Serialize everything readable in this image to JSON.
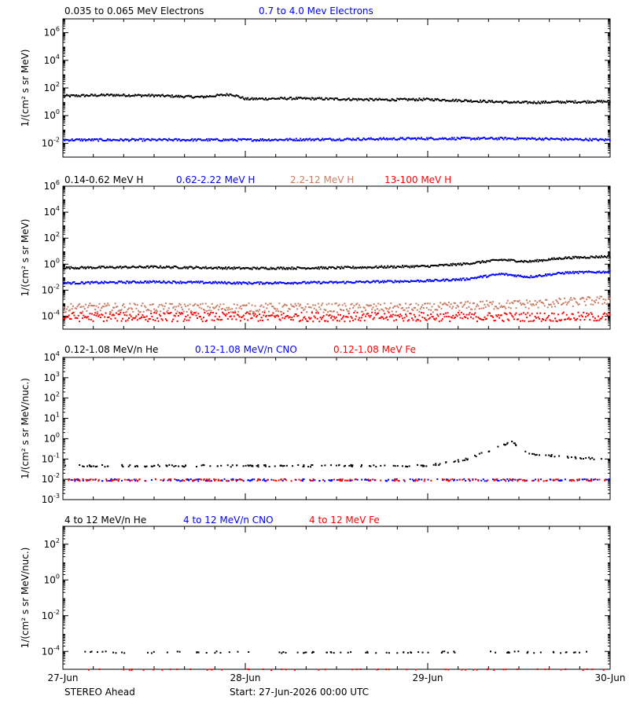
{
  "spacecraft": "STEREO Ahead",
  "start_text": "Start: 27-Jun-2026 00:00 UTC",
  "x_tick_labels": [
    "27-Jun",
    "28-Jun",
    "29-Jun",
    "30-Jun"
  ],
  "colors": {
    "black": "#000000",
    "blue": "#0000ff",
    "tan": "#c87d64",
    "red": "#ff0000"
  },
  "chart_data": [
    {
      "type": "scatter",
      "title": "",
      "ylabel": "1/(cm² s sr MeV)",
      "yscale": "log",
      "ylim": [
        0.001,
        10000000
      ],
      "y_tick_exponents": [
        -2,
        0,
        2,
        4,
        6
      ],
      "y_tick_labels": [
        "10-2",
        "100",
        "102",
        "104",
        "106"
      ],
      "xlim_days": [
        0,
        3
      ],
      "legend": [
        "0.035 to 0.065 MeV Electrons",
        "0.7 to 4.0 Mev Electrons"
      ],
      "series": [
        {
          "name": "0.035 to 0.065 MeV Electrons",
          "color": "#000000",
          "x": [
            0,
            0.25,
            0.5,
            0.75,
            0.92,
            1.0,
            1.25,
            1.5,
            1.75,
            2.0,
            2.25,
            2.5,
            2.75,
            3.0
          ],
          "y": [
            30,
            35,
            32,
            25,
            40,
            18,
            20,
            18,
            16,
            17,
            13,
            10,
            11,
            12
          ]
        },
        {
          "name": "0.7 to 4.0 Mev Electrons",
          "color": "#0000ff",
          "x": [
            0,
            0.5,
            1.0,
            1.5,
            2.0,
            2.5,
            3.0
          ],
          "y": [
            0.02,
            0.02,
            0.02,
            0.022,
            0.025,
            0.025,
            0.02
          ]
        }
      ]
    },
    {
      "type": "scatter",
      "title": "",
      "ylabel": "1/(cm² s sr MeV)",
      "yscale": "log",
      "ylim": [
        1e-05,
        1000000
      ],
      "y_tick_exponents": [
        -4,
        -2,
        0,
        2,
        4,
        6
      ],
      "y_tick_labels": [
        "10-4",
        "10-2",
        "100",
        "102",
        "104",
        "106"
      ],
      "xlim_days": [
        0,
        3
      ],
      "legend": [
        "0.14-0.62 MeV H",
        "0.62-2.22 MeV H",
        "2.2-12 MeV H",
        "13-100 MeV H"
      ],
      "series": [
        {
          "name": "0.14-0.62 MeV H",
          "color": "#000000",
          "x": [
            0,
            0.5,
            1.0,
            1.5,
            2.0,
            2.2,
            2.4,
            2.55,
            2.75,
            3.0
          ],
          "y": [
            0.6,
            0.7,
            0.55,
            0.6,
            0.8,
            1.2,
            2.5,
            1.8,
            3.5,
            4.5
          ]
        },
        {
          "name": "0.62-2.22 MeV H",
          "color": "#0000ff",
          "x": [
            0,
            0.5,
            1.0,
            1.5,
            2.0,
            2.2,
            2.4,
            2.55,
            2.75,
            3.0
          ],
          "y": [
            0.04,
            0.05,
            0.04,
            0.045,
            0.06,
            0.08,
            0.2,
            0.12,
            0.25,
            0.3
          ]
        },
        {
          "name": "2.2-12 MeV H",
          "color": "#c87d64",
          "x": [
            0,
            1.0,
            2.0,
            2.3,
            2.6,
            3.0
          ],
          "y": [
            0.0005,
            0.0005,
            0.0005,
            0.0008,
            0.001,
            0.002
          ]
        },
        {
          "name": "13-100 MeV H",
          "color": "#ff0000",
          "x": [
            0,
            1.0,
            2.0,
            3.0
          ],
          "y": [
            0.0001,
            0.0001,
            0.0001,
            0.0001
          ]
        }
      ]
    },
    {
      "type": "scatter",
      "title": "",
      "ylabel": "1/(cm² s sr MeV/nuc.)",
      "yscale": "log",
      "ylim": [
        0.001,
        10000
      ],
      "y_tick_exponents": [
        -3,
        -2,
        -1,
        0,
        1,
        2,
        3,
        4
      ],
      "y_tick_labels": [
        "10-3",
        "10-2",
        "10-1",
        "100",
        "101",
        "102",
        "103",
        "104"
      ],
      "xlim_days": [
        0,
        3
      ],
      "legend": [
        "0.12-1.08 MeV/n He",
        "0.12-1.08 MeV/n CNO",
        "0.12-1.08 MeV Fe"
      ],
      "series": [
        {
          "name": "0.12-1.08 MeV/n He",
          "color": "#000000",
          "x": [
            0,
            0.5,
            1.0,
            1.5,
            2.0,
            2.2,
            2.35,
            2.45,
            2.55,
            2.7,
            3.0
          ],
          "y": [
            0.05,
            0.05,
            0.05,
            0.05,
            0.05,
            0.1,
            0.3,
            0.8,
            0.2,
            0.15,
            0.1
          ]
        },
        {
          "name": "0.12-1.08 MeV/n CNO",
          "color": "#0000ff",
          "x": [
            0,
            1.0,
            2.0,
            3.0
          ],
          "y": [
            0.01,
            0.01,
            0.01,
            0.01
          ]
        },
        {
          "name": "0.12-1.08 MeV Fe",
          "color": "#ff0000",
          "x": [
            0,
            1.0,
            2.0,
            3.0
          ],
          "y": [
            0.01,
            0.01,
            0.01,
            0.01
          ]
        }
      ]
    },
    {
      "type": "scatter",
      "title": "",
      "ylabel": "1/(cm² s sr MeV/nuc.)",
      "yscale": "log",
      "ylim": [
        1e-05,
        1000
      ],
      "y_tick_exponents": [
        -4,
        -2,
        0,
        2
      ],
      "y_tick_labels": [
        "10-4",
        "10-2",
        "100",
        "102"
      ],
      "xlim_days": [
        0,
        3
      ],
      "legend": [
        "4 to 12 MeV/n He",
        "4 to 12 MeV/n CNO",
        "4 to 12 MeV Fe"
      ],
      "series": [
        {
          "name": "4 to 12 MeV/n He",
          "color": "#000000",
          "x": [
            0.08,
            0.3,
            0.5,
            0.8,
            1.0,
            1.3,
            1.6,
            1.9,
            2.3,
            2.6,
            2.9
          ],
          "y": [
            0.0001,
            0.0001,
            0.0001,
            0.0001,
            0.0001,
            0.0001,
            0.0001,
            0.0001,
            0.0001,
            0.0001,
            0.0001
          ]
        },
        {
          "name": "4 to 12 MeV/n CNO",
          "color": "#0000ff",
          "x": [],
          "y": []
        },
        {
          "name": "4 to 12 MeV Fe",
          "color": "#ff0000",
          "x": [
            0.08
          ],
          "y": [
            1e-05
          ]
        }
      ]
    }
  ]
}
